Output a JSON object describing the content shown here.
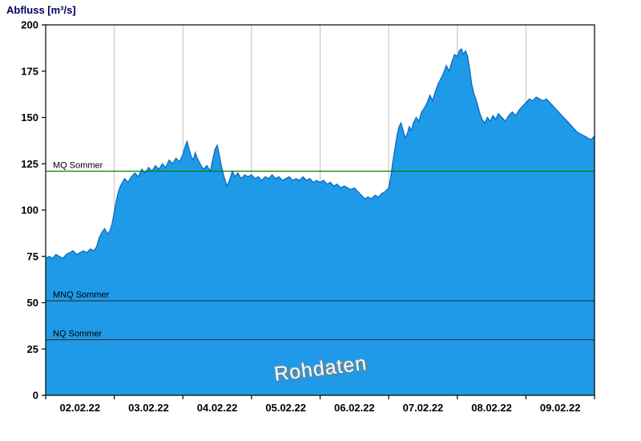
{
  "title": "Abfluss [m³/s]",
  "colors": {
    "area_fill": "#1E9AE8",
    "area_stroke": "#0F6BBF",
    "grid": "#C0C0C0",
    "axis": "#000000",
    "mq_line": "#008000",
    "low_line": "#2F2F2F",
    "title_color": "#000060"
  },
  "chart_data": {
    "type": "area",
    "title": "Abfluss [m³/s]",
    "ylabel": "Abfluss [m³/s]",
    "watermark": "Rohdaten",
    "ylim": [
      0,
      200
    ],
    "yticks": [
      0,
      25,
      50,
      75,
      100,
      125,
      150,
      175,
      200
    ],
    "x_range_days": [
      0,
      8
    ],
    "x_tick_labels": [
      "02.02.22",
      "03.02.22",
      "04.02.22",
      "05.02.22",
      "06.02.22",
      "07.02.22",
      "08.02.22",
      "09.02.22"
    ],
    "grid": "vertical-day-lines",
    "legend_position": "none",
    "reference_lines": [
      {
        "label": "MQ Sommer",
        "value": 121,
        "color": "#008000"
      },
      {
        "label": "MNQ Sommer",
        "value": 51,
        "color": "#2F2F2F"
      },
      {
        "label": "NQ Sommer",
        "value": 30,
        "color": "#2F2F2F"
      }
    ],
    "series": [
      {
        "name": "Abfluss",
        "points": [
          [
            0,
            74
          ],
          [
            0.05,
            75
          ],
          [
            0.1,
            74
          ],
          [
            0.15,
            76
          ],
          [
            0.2,
            75
          ],
          [
            0.25,
            74
          ],
          [
            0.3,
            76
          ],
          [
            0.35,
            77
          ],
          [
            0.4,
            78
          ],
          [
            0.45,
            76
          ],
          [
            0.5,
            77
          ],
          [
            0.55,
            78
          ],
          [
            0.6,
            77
          ],
          [
            0.65,
            79
          ],
          [
            0.7,
            78
          ],
          [
            0.74,
            80
          ],
          [
            0.78,
            85
          ],
          [
            0.82,
            88
          ],
          [
            0.86,
            90
          ],
          [
            0.9,
            87
          ],
          [
            0.94,
            89
          ],
          [
            0.97,
            93
          ],
          [
            1.0,
            99
          ],
          [
            1.03,
            105
          ],
          [
            1.06,
            110
          ],
          [
            1.09,
            113
          ],
          [
            1.12,
            115
          ],
          [
            1.15,
            117
          ],
          [
            1.2,
            115
          ],
          [
            1.25,
            118
          ],
          [
            1.3,
            120
          ],
          [
            1.35,
            118
          ],
          [
            1.4,
            122
          ],
          [
            1.45,
            120
          ],
          [
            1.5,
            123
          ],
          [
            1.55,
            121
          ],
          [
            1.6,
            124
          ],
          [
            1.65,
            122
          ],
          [
            1.7,
            125
          ],
          [
            1.75,
            123
          ],
          [
            1.8,
            127
          ],
          [
            1.85,
            125
          ],
          [
            1.9,
            128
          ],
          [
            1.95,
            126
          ],
          [
            2.0,
            130
          ],
          [
            2.03,
            134
          ],
          [
            2.06,
            137
          ],
          [
            2.09,
            133
          ],
          [
            2.12,
            129
          ],
          [
            2.15,
            127
          ],
          [
            2.18,
            131
          ],
          [
            2.21,
            128
          ],
          [
            2.25,
            125
          ],
          [
            2.3,
            122
          ],
          [
            2.35,
            124
          ],
          [
            2.4,
            121
          ],
          [
            2.44,
            128
          ],
          [
            2.47,
            133
          ],
          [
            2.5,
            135
          ],
          [
            2.53,
            130
          ],
          [
            2.56,
            124
          ],
          [
            2.6,
            118
          ],
          [
            2.64,
            113
          ],
          [
            2.68,
            116
          ],
          [
            2.72,
            121
          ],
          [
            2.76,
            118
          ],
          [
            2.8,
            120
          ],
          [
            2.85,
            117
          ],
          [
            2.9,
            119
          ],
          [
            2.95,
            118
          ],
          [
            3.0,
            119
          ],
          [
            3.05,
            117
          ],
          [
            3.1,
            118
          ],
          [
            3.15,
            116
          ],
          [
            3.2,
            118
          ],
          [
            3.25,
            117
          ],
          [
            3.3,
            119
          ],
          [
            3.35,
            117
          ],
          [
            3.4,
            118
          ],
          [
            3.45,
            116
          ],
          [
            3.5,
            117
          ],
          [
            3.55,
            118
          ],
          [
            3.6,
            116
          ],
          [
            3.65,
            117
          ],
          [
            3.7,
            116
          ],
          [
            3.75,
            118
          ],
          [
            3.8,
            116
          ],
          [
            3.85,
            117
          ],
          [
            3.9,
            115
          ],
          [
            3.95,
            116
          ],
          [
            4.0,
            115
          ],
          [
            4.05,
            116
          ],
          [
            4.1,
            114
          ],
          [
            4.15,
            115
          ],
          [
            4.2,
            113
          ],
          [
            4.25,
            114
          ],
          [
            4.3,
            112
          ],
          [
            4.35,
            113
          ],
          [
            4.4,
            112
          ],
          [
            4.45,
            111
          ],
          [
            4.5,
            112
          ],
          [
            4.55,
            110
          ],
          [
            4.6,
            108
          ],
          [
            4.65,
            106
          ],
          [
            4.7,
            107
          ],
          [
            4.75,
            106
          ],
          [
            4.8,
            108
          ],
          [
            4.85,
            107
          ],
          [
            4.9,
            109
          ],
          [
            4.95,
            110
          ],
          [
            5.0,
            112
          ],
          [
            5.03,
            118
          ],
          [
            5.06,
            126
          ],
          [
            5.09,
            133
          ],
          [
            5.12,
            140
          ],
          [
            5.15,
            145
          ],
          [
            5.18,
            147
          ],
          [
            5.21,
            143
          ],
          [
            5.24,
            139
          ],
          [
            5.27,
            141
          ],
          [
            5.3,
            145
          ],
          [
            5.33,
            143
          ],
          [
            5.36,
            147
          ],
          [
            5.4,
            150
          ],
          [
            5.44,
            148
          ],
          [
            5.48,
            153
          ],
          [
            5.52,
            155
          ],
          [
            5.56,
            158
          ],
          [
            5.6,
            162
          ],
          [
            5.64,
            159
          ],
          [
            5.68,
            164
          ],
          [
            5.72,
            168
          ],
          [
            5.76,
            171
          ],
          [
            5.8,
            174
          ],
          [
            5.84,
            178
          ],
          [
            5.88,
            175
          ],
          [
            5.92,
            180
          ],
          [
            5.96,
            184
          ],
          [
            6.0,
            183
          ],
          [
            6.03,
            186
          ],
          [
            6.06,
            187
          ],
          [
            6.09,
            184
          ],
          [
            6.12,
            186
          ],
          [
            6.15,
            183
          ],
          [
            6.18,
            176
          ],
          [
            6.21,
            168
          ],
          [
            6.24,
            163
          ],
          [
            6.27,
            160
          ],
          [
            6.3,
            156
          ],
          [
            6.33,
            152
          ],
          [
            6.36,
            149
          ],
          [
            6.4,
            147
          ],
          [
            6.44,
            150
          ],
          [
            6.48,
            148
          ],
          [
            6.52,
            151
          ],
          [
            6.56,
            149
          ],
          [
            6.6,
            152
          ],
          [
            6.65,
            150
          ],
          [
            6.7,
            148
          ],
          [
            6.75,
            151
          ],
          [
            6.8,
            153
          ],
          [
            6.85,
            151
          ],
          [
            6.9,
            154
          ],
          [
            6.95,
            156
          ],
          [
            7.0,
            158
          ],
          [
            7.05,
            160
          ],
          [
            7.1,
            159
          ],
          [
            7.15,
            161
          ],
          [
            7.2,
            160
          ],
          [
            7.25,
            159
          ],
          [
            7.3,
            160
          ],
          [
            7.35,
            158
          ],
          [
            7.4,
            156
          ],
          [
            7.45,
            154
          ],
          [
            7.5,
            152
          ],
          [
            7.55,
            150
          ],
          [
            7.6,
            148
          ],
          [
            7.65,
            146
          ],
          [
            7.7,
            144
          ],
          [
            7.75,
            142
          ],
          [
            7.8,
            141
          ],
          [
            7.85,
            140
          ],
          [
            7.9,
            139
          ],
          [
            7.95,
            138
          ],
          [
            8.0,
            140
          ]
        ]
      }
    ]
  }
}
